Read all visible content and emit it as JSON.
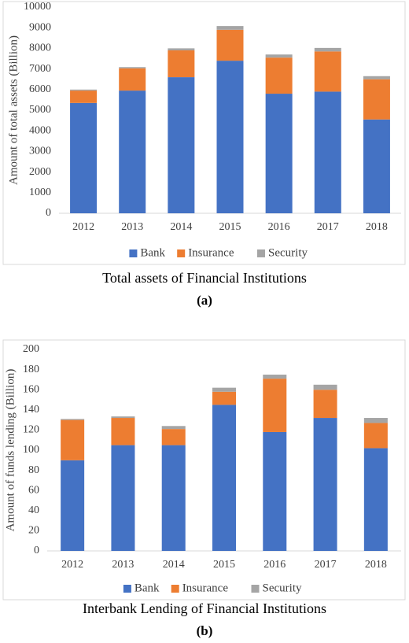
{
  "chart_data": [
    {
      "type": "stacked_bar",
      "title": "Total assets of Financial Institutions",
      "caption": "(a)",
      "y_label": "Amount of total assets (Billion)",
      "categories": [
        "2012",
        "2013",
        "2014",
        "2015",
        "2016",
        "2017",
        "2018"
      ],
      "series": [
        {
          "name": "Bank",
          "color": "#4472c4",
          "values": [
            5350,
            5950,
            6600,
            7400,
            5800,
            5900,
            4550
          ]
        },
        {
          "name": "Insurance",
          "color": "#ed7d31",
          "values": [
            600,
            1080,
            1300,
            1500,
            1750,
            1950,
            1950
          ]
        },
        {
          "name": "Security",
          "color": "#a5a5a5",
          "values": [
            50,
            60,
            100,
            180,
            150,
            170,
            150
          ]
        }
      ],
      "ylim": [
        0,
        10000
      ],
      "yticks": [
        0,
        1000,
        2000,
        3000,
        4000,
        5000,
        6000,
        7000,
        8000,
        9000,
        10000
      ],
      "grid": false,
      "legend": "bottom"
    },
    {
      "type": "stacked_bar",
      "title": "Interbank Lending of Financial Institutions",
      "caption": "(b)",
      "y_label": "Amount of  funds lending (Billion)",
      "categories": [
        "2012",
        "2013",
        "2014",
        "2015",
        "2016",
        "2017",
        "2018"
      ],
      "series": [
        {
          "name": "Bank",
          "color": "#4472c4",
          "values": [
            90,
            105,
            105,
            145,
            118,
            132,
            102
          ]
        },
        {
          "name": "Insurance",
          "color": "#ed7d31",
          "values": [
            40,
            27,
            16,
            13,
            53,
            28,
            25
          ]
        },
        {
          "name": "Security",
          "color": "#a5a5a5",
          "values": [
            1,
            1.5,
            3,
            4,
            4,
            5,
            5
          ]
        }
      ],
      "ylim": [
        0,
        200
      ],
      "yticks": [
        0,
        20,
        40,
        60,
        80,
        100,
        120,
        140,
        160,
        180,
        200
      ],
      "grid": false,
      "legend": "bottom"
    }
  ]
}
